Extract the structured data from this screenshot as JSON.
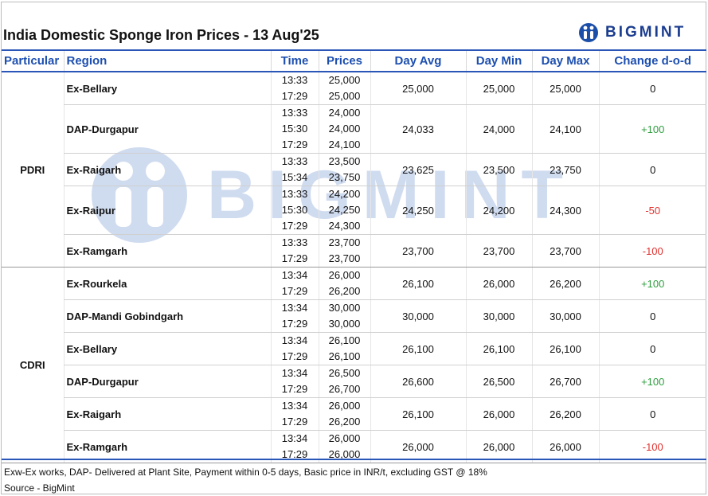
{
  "header": {
    "title": "India Domestic Sponge Iron Prices - 13 Aug'25",
    "brand": "BIGMINT"
  },
  "table": {
    "columns": [
      "Particular",
      "Region",
      "Time",
      "Prices",
      "Day Avg",
      "Day Min",
      "Day Max",
      "Change d-o-d"
    ],
    "groups": [
      {
        "particular": "PDRI",
        "rows": [
          {
            "region": "Ex-Bellary",
            "times": [
              "13:33",
              "17:29"
            ],
            "prices": [
              "25,000",
              "25,000"
            ],
            "day_avg": "25,000",
            "day_min": "25,000",
            "day_max": "25,000",
            "change": "0"
          },
          {
            "region": "DAP-Durgapur",
            "times": [
              "13:33",
              "15:30",
              "17:29"
            ],
            "prices": [
              "24,000",
              "24,000",
              "24,100"
            ],
            "day_avg": "24,033",
            "day_min": "24,000",
            "day_max": "24,100",
            "change": "+100"
          },
          {
            "region": "Ex-Raigarh",
            "times": [
              "13:33",
              "15:34"
            ],
            "prices": [
              "23,500",
              "23,750"
            ],
            "day_avg": "23,625",
            "day_min": "23,500",
            "day_max": "23,750",
            "change": "0"
          },
          {
            "region": "Ex-Raipur",
            "times": [
              "13:33",
              "15:30",
              "17:29"
            ],
            "prices": [
              "24,200",
              "24,250",
              "24,300"
            ],
            "day_avg": "24,250",
            "day_min": "24,200",
            "day_max": "24,300",
            "change": "-50"
          },
          {
            "region": "Ex-Ramgarh",
            "times": [
              "13:33",
              "17:29"
            ],
            "prices": [
              "23,700",
              "23,700"
            ],
            "day_avg": "23,700",
            "day_min": "23,700",
            "day_max": "23,700",
            "change": "-100"
          }
        ]
      },
      {
        "particular": "CDRI",
        "rows": [
          {
            "region": "Ex-Rourkela",
            "times": [
              "13:34",
              "17:29"
            ],
            "prices": [
              "26,000",
              "26,200"
            ],
            "day_avg": "26,100",
            "day_min": "26,000",
            "day_max": "26,200",
            "change": "+100"
          },
          {
            "region": "DAP-Mandi Gobindgarh",
            "times": [
              "13:34",
              "17:29"
            ],
            "prices": [
              "30,000",
              "30,000"
            ],
            "day_avg": "30,000",
            "day_min": "30,000",
            "day_max": "30,000",
            "change": "0"
          },
          {
            "region": "Ex-Bellary",
            "times": [
              "13:34",
              "17:29"
            ],
            "prices": [
              "26,100",
              "26,100"
            ],
            "day_avg": "26,100",
            "day_min": "26,100",
            "day_max": "26,100",
            "change": "0"
          },
          {
            "region": "DAP-Durgapur",
            "times": [
              "13:34",
              "17:29"
            ],
            "prices": [
              "26,500",
              "26,700"
            ],
            "day_avg": "26,600",
            "day_min": "26,500",
            "day_max": "26,700",
            "change": "+100"
          },
          {
            "region": "Ex-Raigarh",
            "times": [
              "13:34",
              "17:29"
            ],
            "prices": [
              "26,000",
              "26,200"
            ],
            "day_avg": "26,100",
            "day_min": "26,000",
            "day_max": "26,200",
            "change": "0"
          },
          {
            "region": "Ex-Ramgarh",
            "times": [
              "13:34",
              "17:29"
            ],
            "prices": [
              "26,000",
              "26,000"
            ],
            "day_avg": "26,000",
            "day_min": "26,000",
            "day_max": "26,000",
            "change": "-100"
          }
        ]
      }
    ]
  },
  "footer": {
    "notes": "Exw-Ex works, DAP- Delivered at Plant Site, Payment within 0-5 days, Basic price in INR/t, excluding GST @ 18%",
    "source": "Source - BigMint"
  }
}
